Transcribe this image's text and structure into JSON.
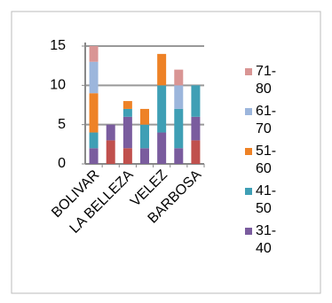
{
  "chart_data": {
    "type": "stacked_bar",
    "categories": [
      "BOLIVAR",
      null,
      "LA BELLEZA",
      null,
      "VELEZ",
      null,
      "BARBOSA"
    ],
    "series": [
      {
        "name": null,
        "color": "#c0504d",
        "values": [
          0,
          3,
          2,
          0,
          0,
          0,
          3
        ]
      },
      {
        "name": "31-40",
        "color": "#7a5c9e",
        "values": [
          2,
          2,
          4,
          2,
          4,
          2,
          3
        ]
      },
      {
        "name": "41-50",
        "color": "#3f9fb5",
        "values": [
          2,
          0,
          1,
          3,
          6,
          5,
          4
        ]
      },
      {
        "name": "51-60",
        "color": "#ee8226",
        "values": [
          5,
          0,
          1,
          2,
          4,
          0,
          0
        ]
      },
      {
        "name": "61-70",
        "color": "#9cb6dc",
        "values": [
          4,
          0,
          0,
          0,
          0,
          3,
          0
        ]
      },
      {
        "name": "71-80",
        "color": "#d99594",
        "values": [
          2,
          0,
          0,
          0,
          0,
          2,
          0
        ]
      }
    ],
    "ylim": [
      0,
      15
    ],
    "yticks": [
      0,
      5,
      10,
      15
    ],
    "grid": true
  }
}
